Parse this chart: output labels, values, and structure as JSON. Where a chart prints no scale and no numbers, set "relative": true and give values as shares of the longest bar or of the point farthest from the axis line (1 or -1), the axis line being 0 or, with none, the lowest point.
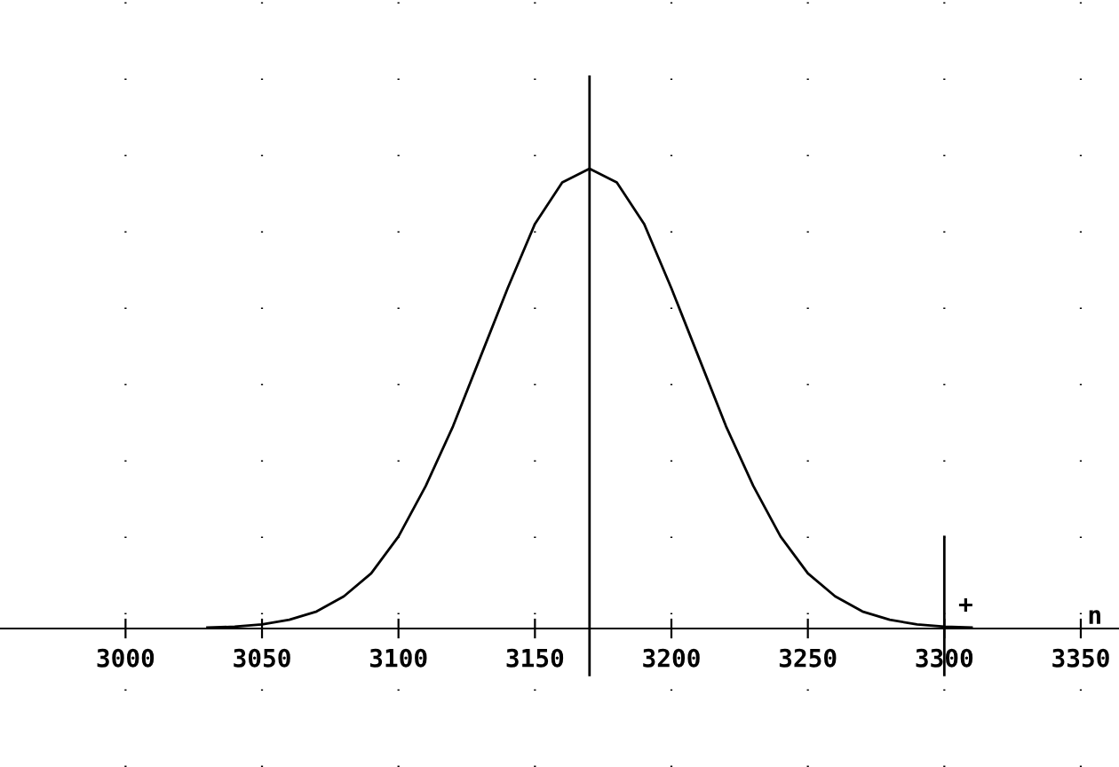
{
  "chart_data": {
    "type": "line",
    "relative": true,
    "xlabel": "n",
    "x": [
      3030,
      3040,
      3050,
      3060,
      3070,
      3080,
      3090,
      3100,
      3110,
      3120,
      3130,
      3140,
      3150,
      3160,
      3170,
      3180,
      3190,
      3200,
      3210,
      3220,
      3230,
      3240,
      3250,
      3260,
      3270,
      3280,
      3290,
      3300,
      3310
    ],
    "series": [
      {
        "color": "#000000",
        "values": [
          0.002,
          0.004,
          0.009,
          0.019,
          0.037,
          0.07,
          0.12,
          0.2,
          0.31,
          0.44,
          0.59,
          0.74,
          0.88,
          0.97,
          1,
          0.97,
          0.88,
          0.74,
          0.59,
          0.44,
          0.31,
          0.2,
          0.12,
          0.07,
          0.037,
          0.019,
          0.009,
          0.004,
          0.002
        ]
      }
    ],
    "xlim": [
      2954,
      3364
    ],
    "xticks": [
      3000,
      3050,
      3100,
      3150,
      3200,
      3250,
      3300,
      3350
    ],
    "ref_lines": [
      {
        "axis": "x",
        "value": 3170,
        "color": "#000000"
      },
      {
        "axis": "x",
        "value": 3300,
        "color": "#000000"
      }
    ],
    "annotations": [
      "+"
    ],
    "grid": "x",
    "marker": "none",
    "line_style": "solid",
    "legend": false
  }
}
